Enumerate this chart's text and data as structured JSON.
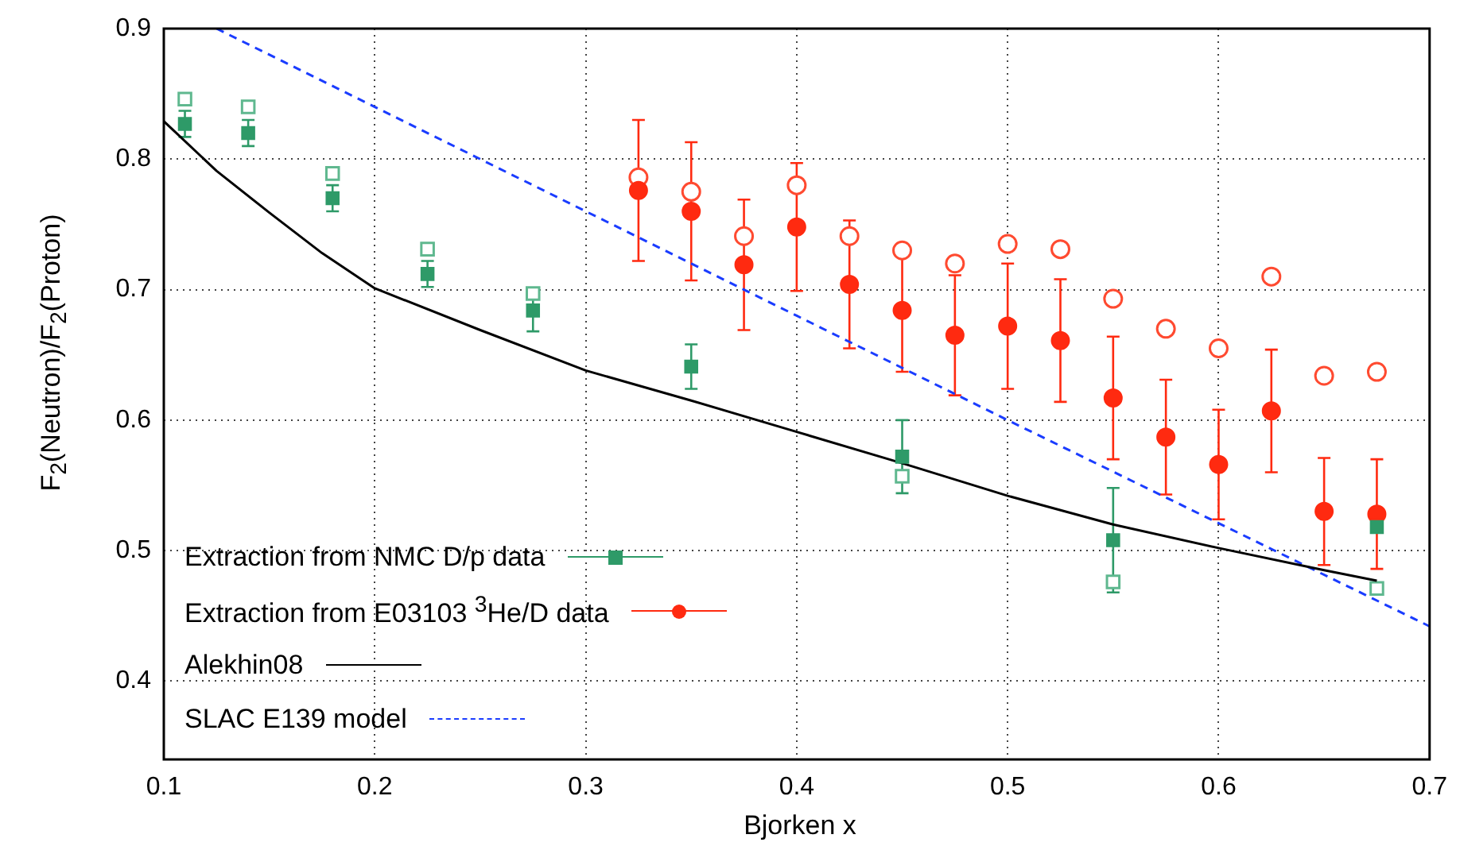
{
  "chart_data": {
    "type": "scatter",
    "xlabel": "Bjorken x",
    "ylabel": "F$_{2}$(Neutron)/F$_{2}$(Proton)",
    "xlim": [
      0.1,
      0.7
    ],
    "ylim": [
      0.34,
      0.9
    ],
    "xticks": [
      0.1,
      0.2,
      0.3,
      0.4,
      0.5,
      0.6,
      0.7
    ],
    "yticks": [
      0.4,
      0.5,
      0.6,
      0.7,
      0.8,
      0.9
    ],
    "grid": true,
    "legend": "bottom left",
    "series": [
      {
        "name": "Extraction from NMC D/p data",
        "color": "#2e9a68",
        "marker": "square",
        "x": [
          0.11,
          0.14,
          0.18,
          0.225,
          0.275,
          0.35,
          0.45,
          0.55,
          0.675
        ],
        "values": [
          0.827,
          0.82,
          0.77,
          0.712,
          0.684,
          0.641,
          0.572,
          0.508,
          0.518
        ],
        "errors": [
          0.01,
          0.01,
          0.01,
          0.01,
          0.016,
          0.017,
          0.028,
          0.04,
          null
        ]
      },
      {
        "name": "Extraction from E03103 $^{3}$He/D data",
        "color": "#ff2a10",
        "marker": "circle",
        "x": [
          0.325,
          0.35,
          0.375,
          0.4,
          0.425,
          0.45,
          0.475,
          0.5,
          0.525,
          0.55,
          0.575,
          0.6,
          0.625,
          0.65,
          0.675
        ],
        "values": [
          0.776,
          0.76,
          0.719,
          0.748,
          0.704,
          0.684,
          0.665,
          0.672,
          0.661,
          0.617,
          0.587,
          0.566,
          0.607,
          0.53,
          0.528
        ],
        "errors": [
          0.054,
          0.053,
          0.05,
          0.049,
          0.049,
          0.047,
          0.046,
          0.048,
          0.047,
          0.047,
          0.044,
          0.042,
          0.047,
          0.041,
          0.042
        ]
      },
      {
        "name": "Alekhin08",
        "type": "line",
        "color": "#000000",
        "line_style": "solid",
        "x": [
          0.1,
          0.125,
          0.15,
          0.175,
          0.2,
          0.25,
          0.3,
          0.35,
          0.4,
          0.45,
          0.5,
          0.55,
          0.6,
          0.65,
          0.675
        ],
        "values": [
          0.829,
          0.791,
          0.759,
          0.728,
          0.701,
          0.669,
          0.638,
          0.615,
          0.591,
          0.567,
          0.542,
          0.52,
          0.502,
          0.485,
          0.477
        ]
      },
      {
        "name": "SLAC E139 model",
        "type": "line",
        "color": "#1a3cff",
        "line_style": "dashed",
        "x": [
          0.125,
          0.2,
          0.3,
          0.4,
          0.5,
          0.6,
          0.7
        ],
        "values": [
          0.9,
          0.84,
          0.76,
          0.68,
          0.6,
          0.521,
          0.442
        ]
      },
      {
        "color": "#5fb88f",
        "marker": "square",
        "x": [
          0.11,
          0.14,
          0.18,
          0.225,
          0.275,
          0.35,
          0.45,
          0.55,
          0.675
        ],
        "values": [
          0.846,
          0.84,
          0.789,
          0.731,
          0.697,
          null,
          0.557,
          0.476,
          0.471
        ]
      },
      {
        "color": "#ff4a30",
        "marker": "circle",
        "x": [
          0.325,
          0.35,
          0.375,
          0.4,
          0.425,
          0.45,
          0.475,
          0.5,
          0.525,
          0.55,
          0.575,
          0.6,
          0.625,
          0.65,
          0.675
        ],
        "values": [
          0.786,
          0.775,
          0.741,
          0.78,
          0.741,
          0.73,
          0.72,
          0.735,
          0.731,
          0.693,
          0.67,
          0.655,
          0.71,
          0.634,
          0.637
        ]
      }
    ]
  }
}
